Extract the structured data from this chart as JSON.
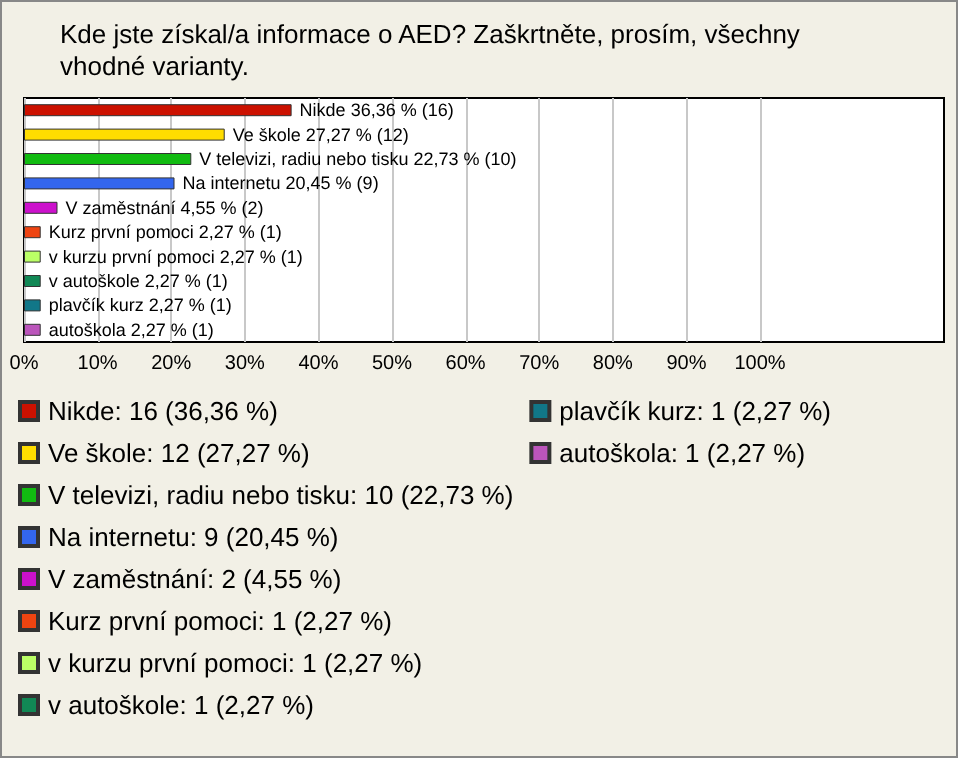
{
  "chart_data": {
    "type": "bar",
    "orientation": "horizontal",
    "title": "Kde jste získal/a informace o AED? Zaškrtněte, prosím, všechny vhodné varianty.",
    "categories": [
      null,
      null,
      null,
      null,
      null,
      null,
      null,
      null,
      null,
      null
    ],
    "series": [
      {
        "name": "Nikde: 16 (36,36 %)",
        "color": "#cc1100",
        "values": [
          36.36,
          null,
          null,
          null,
          null,
          null,
          null,
          null,
          null,
          null
        ],
        "value_labels": [
          "Nikde 36,36 % (16)",
          null,
          null,
          null,
          null,
          null,
          null,
          null,
          null,
          null
        ]
      },
      {
        "name": "Ve škole: 12 (27,27 %)",
        "color": "#ffdd00",
        "values": [
          null,
          27.27,
          null,
          null,
          null,
          null,
          null,
          null,
          null,
          null
        ],
        "value_labels": [
          null,
          "Ve škole 27,27 % (12)",
          null,
          null,
          null,
          null,
          null,
          null,
          null,
          null
        ]
      },
      {
        "name": "V televizi, radiu nebo tisku: 10 (22,73 %)",
        "color": "#11bb11",
        "values": [
          null,
          null,
          22.73,
          null,
          null,
          null,
          null,
          null,
          null,
          null
        ],
        "value_labels": [
          null,
          null,
          "V televizi, radiu nebo tisku 22,73 % (10)",
          null,
          null,
          null,
          null,
          null,
          null,
          null
        ]
      },
      {
        "name": "Na internetu: 9 (20,45 %)",
        "color": "#3366ee",
        "values": [
          null,
          null,
          null,
          20.45,
          null,
          null,
          null,
          null,
          null,
          null
        ],
        "value_labels": [
          null,
          null,
          null,
          "Na internetu 20,45 % (9)",
          null,
          null,
          null,
          null,
          null,
          null
        ]
      },
      {
        "name": "V zaměstnání: 2 (4,55 %)",
        "color": "#cc11cc",
        "values": [
          null,
          null,
          null,
          null,
          4.55,
          null,
          null,
          null,
          null,
          null
        ],
        "value_labels": [
          null,
          null,
          null,
          null,
          "V zaměstnání 4,55 % (2)",
          null,
          null,
          null,
          null,
          null
        ]
      },
      {
        "name": "Kurz první pomoci: 1 (2,27 %)",
        "color": "#ee4411",
        "values": [
          null,
          null,
          null,
          null,
          null,
          2.27,
          null,
          null,
          null,
          null
        ],
        "value_labels": [
          null,
          null,
          null,
          null,
          null,
          "Kurz první pomoci 2,27 % (1)",
          null,
          null,
          null,
          null
        ]
      },
      {
        "name": "v kurzu první pomoci: 1 (2,27 %)",
        "color": "#bbff66",
        "values": [
          null,
          null,
          null,
          null,
          null,
          null,
          2.27,
          null,
          null,
          null
        ],
        "value_labels": [
          null,
          null,
          null,
          null,
          null,
          null,
          "v kurzu první pomoci 2,27 % (1)",
          null,
          null,
          null
        ]
      },
      {
        "name": "v autoškole: 1 (2,27 %)",
        "color": "#118855",
        "values": [
          null,
          null,
          null,
          null,
          null,
          null,
          null,
          2.27,
          null,
          null
        ],
        "value_labels": [
          null,
          null,
          null,
          null,
          null,
          null,
          null,
          "v autoškole 2,27 % (1)",
          null,
          null
        ]
      },
      {
        "name": "plavčík kurz: 1 (2,27 %)",
        "color": "#117788",
        "values": [
          null,
          null,
          null,
          null,
          null,
          null,
          null,
          null,
          2.27,
          null
        ],
        "value_labels": [
          null,
          null,
          null,
          null,
          null,
          null,
          null,
          null,
          "plavčík kurz 2,27 % (1)",
          null
        ]
      },
      {
        "name": "autoškola: 1 (2,27 %)",
        "color": "#bb55bb",
        "values": [
          null,
          null,
          null,
          null,
          null,
          null,
          null,
          null,
          null,
          2.27
        ],
        "value_labels": [
          null,
          null,
          null,
          null,
          null,
          null,
          null,
          null,
          null,
          "autoškola 2,27 % (1)"
        ]
      }
    ],
    "xlim": [
      0,
      125
    ],
    "xticks": [
      {
        "value": 0,
        "label": "0%"
      },
      {
        "value": 10,
        "label": "10%"
      },
      {
        "value": 20,
        "label": "20%"
      },
      {
        "value": 30,
        "label": "30%"
      },
      {
        "value": 40,
        "label": "40%"
      },
      {
        "value": 50,
        "label": "50%"
      },
      {
        "value": 60,
        "label": "60%"
      },
      {
        "value": 70,
        "label": "70%"
      },
      {
        "value": 80,
        "label": "80%"
      },
      {
        "value": 90,
        "label": "90%"
      },
      {
        "value": 100,
        "label": "100%"
      }
    ],
    "grid": "x",
    "tick_labels": "x",
    "legend": "bottom"
  }
}
